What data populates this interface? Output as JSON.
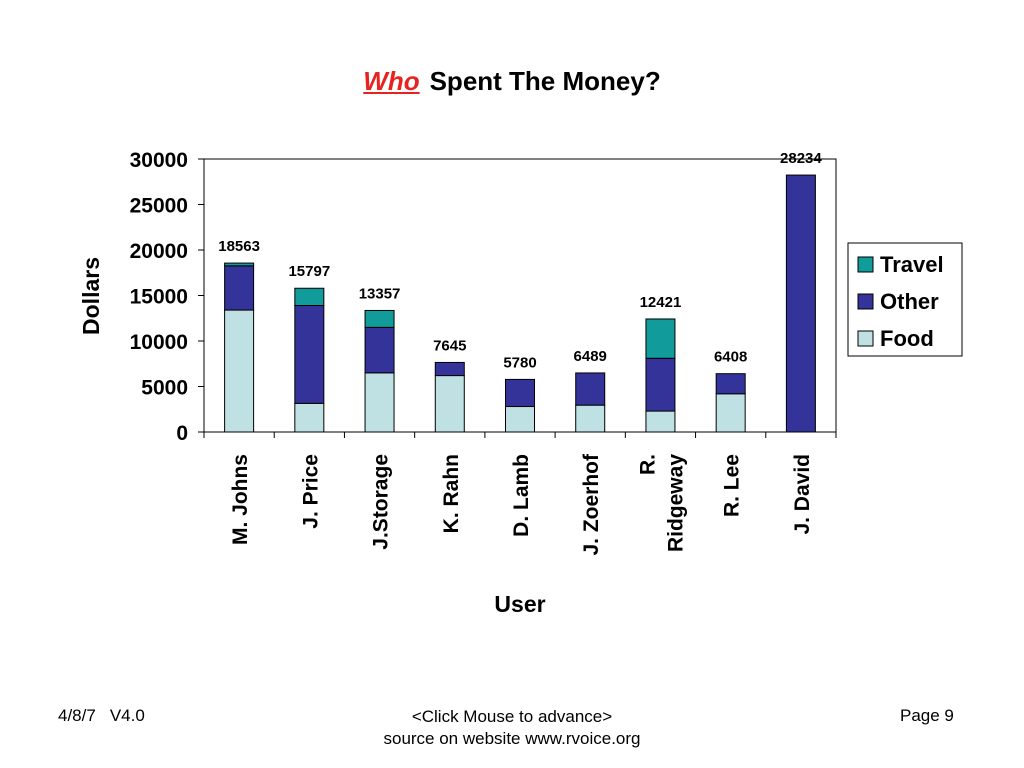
{
  "title": {
    "emphasis": "Who",
    "rest": "Spent The Money?"
  },
  "chart_data": {
    "type": "bar",
    "stacked": true,
    "categories": [
      "M. Johns",
      "J. Price",
      "J.Storage",
      "K. Rahn",
      "D. Lamb",
      "J. Zoerhof",
      "R. Ridgeway",
      "R. Lee",
      "J. David"
    ],
    "series": [
      {
        "name": "Food",
        "color": "#bfe1e3",
        "values": [
          13400,
          3150,
          6500,
          6200,
          2800,
          2950,
          2300,
          4200,
          0
        ]
      },
      {
        "name": "Other",
        "color": "#33339a",
        "values": [
          4863,
          10750,
          5000,
          1445,
          2980,
          3539,
          5800,
          2208,
          28234
        ]
      },
      {
        "name": "Travel",
        "color": "#129b9b",
        "values": [
          300,
          1897,
          1857,
          0,
          0,
          0,
          4321,
          0,
          0
        ]
      }
    ],
    "totals": [
      "18563",
      "15797",
      "13357",
      "7645",
      "5780",
      "6489",
      "12421",
      "6408",
      "28234"
    ],
    "ylabel": "Dollars",
    "xlabel": "User",
    "ylim": [
      0,
      30000
    ],
    "yticks": [
      "0",
      "5000",
      "10000",
      "15000",
      "20000",
      "25000",
      "30000"
    ],
    "legend_position": "right",
    "legend_order": [
      "Travel",
      "Other",
      "Food"
    ],
    "grid": false
  },
  "footer": {
    "date": "4/8/7",
    "version": "V4.0",
    "center_line1": "<Click Mouse to advance>",
    "center_line2": "source on website www.rvoice.org",
    "page": "Page 9"
  }
}
